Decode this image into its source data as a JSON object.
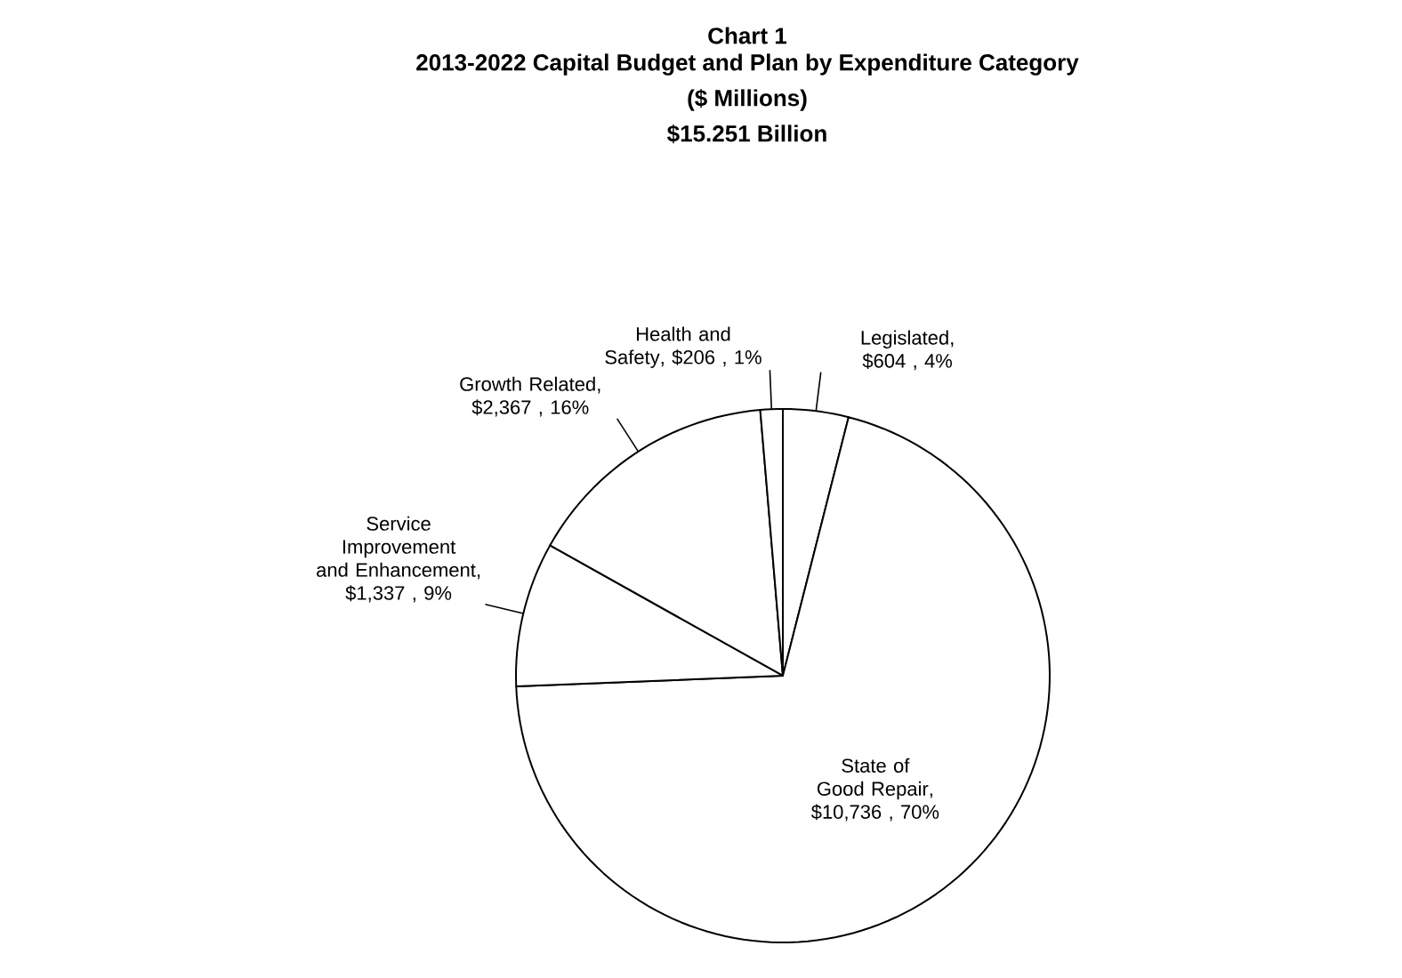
{
  "chart_data": {
    "type": "pie",
    "title": "Chart 1",
    "subtitle": "2013-2022 Capital Budget and Plan by Expenditure Category\n($ Millions)\n$15.251 Billion",
    "categories": [
      "Legislated",
      "State of Good Repair",
      "Service Improvement and Enhancement",
      "Growth Related",
      "Health and Safety"
    ],
    "values": [
      604,
      10736,
      1337,
      2367,
      206
    ],
    "value_labels": [
      ", $604 , 4%",
      ", $10,736 , 70%",
      ", $1,337 , 9%",
      ", $2,367 , 16%",
      ", $206 , 1%"
    ],
    "colors": [
      "#ffffff",
      "#ffffff",
      "#ffffff",
      "#ffffff",
      "#ffffff"
    ]
  }
}
